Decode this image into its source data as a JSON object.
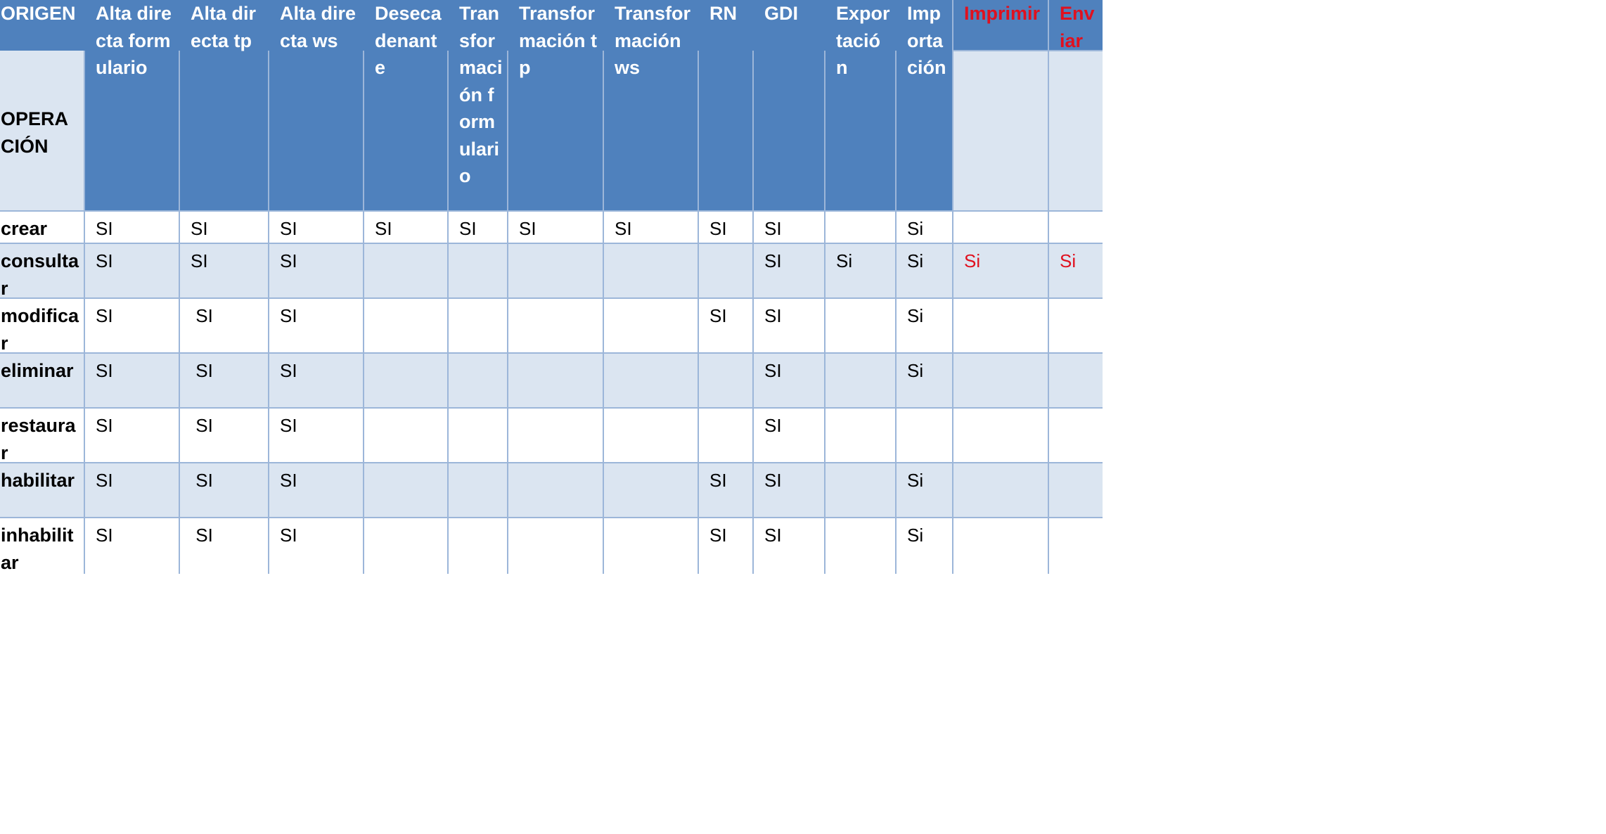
{
  "corner": {
    "origin_label": "ORIGEN",
    "operation_label": "OPERA CIÓN"
  },
  "columns": [
    {
      "label": "Alta directa formulario",
      "color": "#ffffff"
    },
    {
      "label": "Alta directa tp",
      "color": "#ffffff"
    },
    {
      "label": "Alta directa ws",
      "color": "#ffffff"
    },
    {
      "label": "Desecadenante",
      "color": "#ffffff"
    },
    {
      "label": "Transformación formulario",
      "color": "#ffffff"
    },
    {
      "label": "Transformación tp",
      "color": "#ffffff"
    },
    {
      "label": "Transformación ws",
      "color": "#ffffff"
    },
    {
      "label": "RN",
      "color": "#ffffff"
    },
    {
      "label": "GDI",
      "color": "#ffffff"
    },
    {
      "label": "Exportación",
      "color": "#ffffff"
    },
    {
      "label": "Importación",
      "color": "#ffffff"
    },
    {
      "label": "Imprimir",
      "color": "#e0101e"
    },
    {
      "label": "Enviar",
      "color": "#e0101e"
    }
  ],
  "rows": [
    {
      "operation": "crear",
      "cells": [
        "SI",
        "SI",
        "SI",
        "SI",
        "SI",
        "SI",
        "SI",
        "SI",
        "SI",
        "",
        "Si",
        "",
        ""
      ]
    },
    {
      "operation": "consultar",
      "cells": [
        "SI",
        "SI",
        "SI",
        "",
        "",
        "",
        "",
        "",
        "SI",
        "Si",
        "Si",
        "Si",
        "Si"
      ]
    },
    {
      "operation": "modificar",
      "cells": [
        "SI",
        " SI",
        "SI",
        "",
        "",
        "",
        "",
        "SI",
        "SI",
        "",
        "Si",
        "",
        ""
      ]
    },
    {
      "operation": "eliminar",
      "cells": [
        "SI",
        " SI",
        "SI",
        "",
        "",
        "",
        "",
        "",
        "SI",
        "",
        "Si",
        "",
        ""
      ]
    },
    {
      "operation": "restaurar",
      "cells": [
        "SI",
        " SI",
        "SI",
        "",
        "",
        "",
        "",
        "",
        "SI",
        "",
        "",
        "",
        ""
      ]
    },
    {
      "operation": "habilitar",
      "cells": [
        "SI",
        " SI",
        "SI",
        "",
        "",
        "",
        "",
        "SI",
        "SI",
        "",
        "Si",
        "",
        ""
      ]
    },
    {
      "operation": "inhabilitar",
      "cells": [
        "SI",
        " SI",
        "SI",
        "",
        "",
        "",
        "",
        "SI",
        "SI",
        "",
        "Si",
        "",
        ""
      ]
    }
  ],
  "colors": {
    "header_bg": "#4f81bd",
    "band_bg": "#dbe5f1",
    "accent_red": "#e0101e"
  }
}
